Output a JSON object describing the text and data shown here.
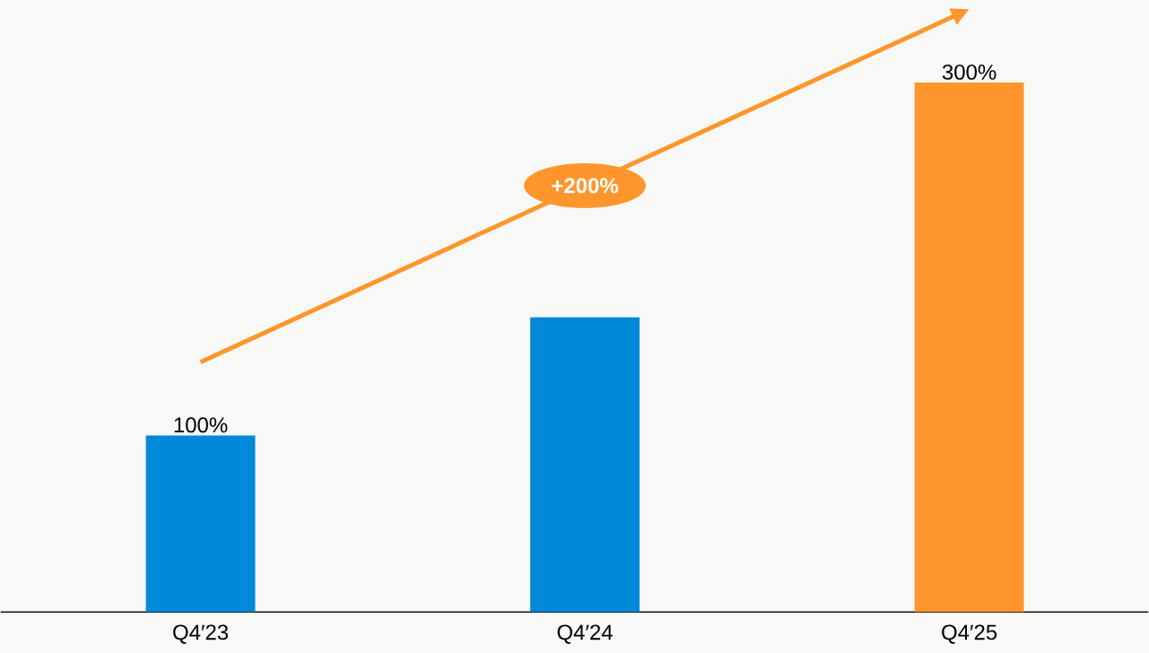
{
  "chart_data": {
    "type": "bar",
    "categories": [
      "Q4′23",
      "Q4′24",
      "Q4′25"
    ],
    "values": [
      100,
      167,
      300
    ],
    "colors": [
      "#0088d9",
      "#0088d9",
      "#ff962d"
    ],
    "value_labels": [
      "100%",
      null,
      "300%"
    ],
    "annotations": [
      "+200%"
    ]
  }
}
